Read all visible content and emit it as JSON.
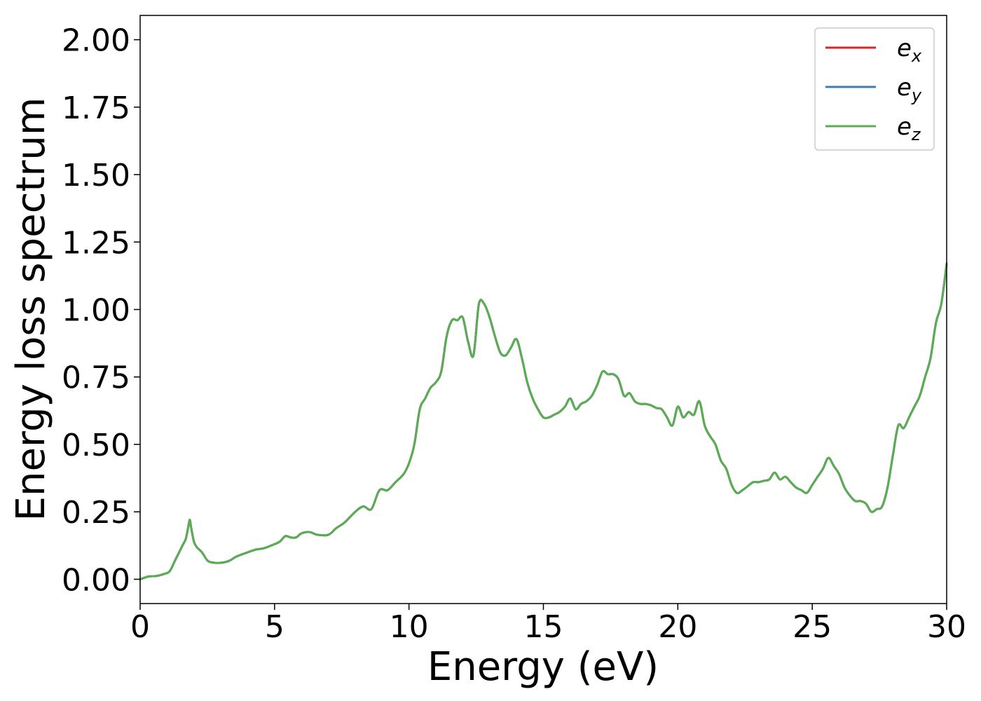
{
  "chart_data": {
    "type": "line",
    "title": "",
    "xlabel": "Energy (eV)",
    "ylabel": "Energy loss spectrum",
    "xlim": [
      0,
      30
    ],
    "ylim": [
      -0.09,
      2.09
    ],
    "x_ticks": [
      0,
      5,
      10,
      15,
      20,
      25,
      30
    ],
    "x_tick_labels": [
      "0",
      "5",
      "10",
      "15",
      "20",
      "25",
      "30"
    ],
    "y_ticks": [
      0,
      0.25,
      0.5,
      0.75,
      1.0,
      1.25,
      1.5,
      1.75,
      2.0
    ],
    "y_tick_labels": [
      "0.00",
      "0.25",
      "0.50",
      "0.75",
      "1.00",
      "1.25",
      "1.50",
      "1.75",
      "2.00"
    ],
    "grid": false,
    "legend_position": "top-right",
    "colors": {
      "e_x": "#d62728",
      "e_y": "#3a7fb5",
      "e_z": "#5aad52"
    },
    "series": [
      {
        "name": "e_x",
        "label_base": "e",
        "label_sub": "x",
        "color": "#d62728"
      },
      {
        "name": "e_y",
        "label_base": "e",
        "label_sub": "y",
        "color": "#3a7fb5"
      },
      {
        "name": "e_z",
        "label_base": "e",
        "label_sub": "z",
        "color": "#5aad52"
      }
    ],
    "x": [
      0,
      0.3,
      0.6,
      0.9,
      1.1,
      1.3,
      1.5,
      1.6,
      1.7,
      1.8,
      1.85,
      1.9,
      2.0,
      2.1,
      2.3,
      2.5,
      2.7,
      3.0,
      3.3,
      3.6,
      4.0,
      4.3,
      4.6,
      5.0,
      5.2,
      5.4,
      5.6,
      5.8,
      6.0,
      6.3,
      6.6,
      7.0,
      7.3,
      7.6,
      8.0,
      8.3,
      8.6,
      8.9,
      9.2,
      9.5,
      9.8,
      10.0,
      10.2,
      10.4,
      10.6,
      10.8,
      11.0,
      11.2,
      11.4,
      11.6,
      11.8,
      12.0,
      12.2,
      12.4,
      12.6,
      12.8,
      13.0,
      13.2,
      13.4,
      13.6,
      13.8,
      14.0,
      14.2,
      14.4,
      14.6,
      14.8,
      15.0,
      15.2,
      15.4,
      15.6,
      15.8,
      16.0,
      16.2,
      16.4,
      16.6,
      16.8,
      17.0,
      17.2,
      17.4,
      17.6,
      17.8,
      18.0,
      18.2,
      18.4,
      18.6,
      18.8,
      19.0,
      19.2,
      19.4,
      19.6,
      19.8,
      20.0,
      20.2,
      20.4,
      20.6,
      20.8,
      21.0,
      21.2,
      21.4,
      21.6,
      21.8,
      22.0,
      22.2,
      22.4,
      22.6,
      22.8,
      23.0,
      23.2,
      23.4,
      23.6,
      23.8,
      24.0,
      24.2,
      24.4,
      24.6,
      24.8,
      25.0,
      25.2,
      25.4,
      25.6,
      25.8,
      26.0,
      26.2,
      26.4,
      26.6,
      26.8,
      27.0,
      27.2,
      27.4,
      27.6,
      27.8,
      28.0,
      28.2,
      28.4,
      28.6,
      28.8,
      29.0,
      29.2,
      29.4,
      29.6,
      29.8,
      30.0
    ],
    "y": [
      0.0,
      0.01,
      0.012,
      0.02,
      0.03,
      0.07,
      0.11,
      0.13,
      0.15,
      0.2,
      0.22,
      0.19,
      0.14,
      0.12,
      0.1,
      0.07,
      0.062,
      0.061,
      0.068,
      0.085,
      0.1,
      0.11,
      0.115,
      0.13,
      0.14,
      0.16,
      0.155,
      0.155,
      0.17,
      0.175,
      0.165,
      0.165,
      0.19,
      0.21,
      0.25,
      0.27,
      0.26,
      0.33,
      0.33,
      0.36,
      0.39,
      0.43,
      0.5,
      0.63,
      0.67,
      0.71,
      0.73,
      0.77,
      0.9,
      0.96,
      0.96,
      0.97,
      0.88,
      0.83,
      1.02,
      1.02,
      0.97,
      0.9,
      0.84,
      0.83,
      0.86,
      0.89,
      0.82,
      0.73,
      0.67,
      0.63,
      0.6,
      0.6,
      0.61,
      0.62,
      0.64,
      0.67,
      0.63,
      0.65,
      0.66,
      0.68,
      0.72,
      0.77,
      0.76,
      0.76,
      0.74,
      0.68,
      0.69,
      0.66,
      0.65,
      0.65,
      0.645,
      0.635,
      0.63,
      0.6,
      0.57,
      0.64,
      0.6,
      0.62,
      0.61,
      0.66,
      0.57,
      0.53,
      0.5,
      0.44,
      0.41,
      0.35,
      0.32,
      0.33,
      0.345,
      0.36,
      0.36,
      0.365,
      0.37,
      0.395,
      0.37,
      0.38,
      0.36,
      0.34,
      0.33,
      0.32,
      0.35,
      0.38,
      0.41,
      0.45,
      0.42,
      0.39,
      0.34,
      0.31,
      0.29,
      0.29,
      0.28,
      0.25,
      0.26,
      0.27,
      0.34,
      0.46,
      0.57,
      0.56,
      0.6,
      0.64,
      0.68,
      0.75,
      0.82,
      0.95,
      1.02,
      1.17
    ]
  }
}
